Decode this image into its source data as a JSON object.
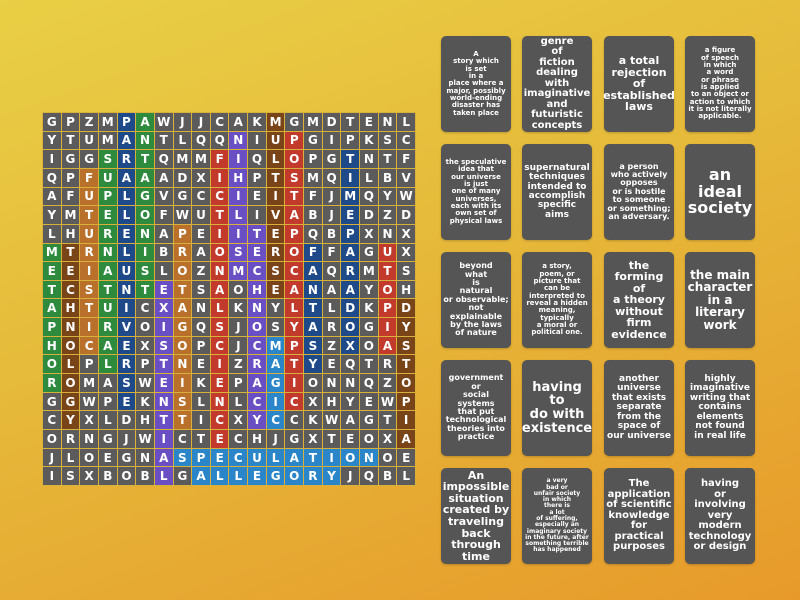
{
  "colors": {
    "cell": "#5b5b5b",
    "green": "#2e8b3e",
    "darkblue": "#1f4a8a",
    "brown": "#7a4419",
    "orange": "#b8702a",
    "red": "#c23a2b",
    "purple": "#6a4fc4",
    "lightblue": "#2a86c8"
  },
  "grid": [
    "GPZMPAWJJCAKMGMDTENL",
    "YTUMANTLQQNIUPGIPKSC",
    "IGGSRTQMMFIQLOPGTNTF",
    "QPFUAAADXIHPTSMQILBV",
    "AFUPLGVGCCIEITFJMQYW",
    "YMTELOFWUTLIVABJEDZD",
    "LHURENAPEIITEPQBPXNX",
    "MTRNLIBRAOSEROFFAGUX",
    "EEIAUSLOZNMCSCAQRMTS",
    "TCSTNTETSAOHEANAAYOH",
    "AHTUICXANLKNYLTLDKPD",
    "PNIRVOIGQSJOSYAROGIY",
    "HOCAEXSOPCJCMPSZXOAS",
    "OLPLRPTNEIZRATYEQTRT",
    "ROMASWEIKEPAGIONNQZO",
    "GGWPEKNSLNLCICXHYEWP",
    "CYXLDHTTICXYCCKWAGTI",
    "ORNGJWICTECHJGXTEOXA",
    "JLOEGNASPECULATIONOE",
    "ISXBOBLGALLEGORYJQBL"
  ],
  "found_words": [
    {
      "word": "METAPHOR",
      "row": 7,
      "col": 0,
      "dir": "down",
      "color": "green"
    },
    {
      "word": "TECHNOLOGY",
      "row": 7,
      "col": 1,
      "dir": "down",
      "color": "brown"
    },
    {
      "word": "FUTURISTIC",
      "row": 3,
      "col": 2,
      "dir": "down",
      "color": "orange"
    },
    {
      "word": "SUPERNATURAL",
      "row": 2,
      "col": 3,
      "dir": "down",
      "color": "green"
    },
    {
      "word": "PARALLELUNIVERSE",
      "row": 0,
      "col": 4,
      "dir": "down",
      "color": "darkblue"
    },
    {
      "word": "ANTAGONIST",
      "row": 0,
      "col": 5,
      "dir": "down",
      "color": "green"
    },
    {
      "word": "EXISTENTIAL",
      "row": 9,
      "col": 6,
      "dir": "down",
      "color": "purple"
    },
    {
      "word": "PROTAGONIST",
      "row": 6,
      "col": 7,
      "dir": "down",
      "color": "orange"
    },
    {
      "word": "FICTIONALSCIENCE",
      "row": 2,
      "col": 9,
      "dir": "down",
      "color": "red"
    },
    {
      "word": "NIHILISM",
      "row": 1,
      "col": 10,
      "dir": "down",
      "color": "purple"
    },
    {
      "word": "TECHNOCRACY",
      "row": 6,
      "col": 11,
      "dir": "down",
      "color": "purple"
    },
    {
      "word": "MULTIVERSE",
      "row": 0,
      "col": 12,
      "dir": "down",
      "color": "brown"
    },
    {
      "word": "MAGIC",
      "row": 12,
      "col": 12,
      "dir": "down",
      "color": "lightblue"
    },
    {
      "word": "POSTAPOCALYPTIC",
      "row": 1,
      "col": 13,
      "dir": "down",
      "color": "red"
    },
    {
      "word": "FANTASY",
      "row": 7,
      "col": 14,
      "dir": "down",
      "color": "darkblue"
    },
    {
      "word": "TIMEPARADOX",
      "row": 2,
      "col": 16,
      "dir": "down",
      "color": "darkblue"
    },
    {
      "word": "UTOPIA",
      "row": 7,
      "col": 18,
      "dir": "down",
      "color": "red"
    },
    {
      "word": "DYSTOPIA",
      "row": 10,
      "col": 19,
      "dir": "down",
      "color": "brown"
    },
    {
      "word": "SPECULATION",
      "row": 18,
      "col": 7,
      "dir": "right",
      "color": "lightblue"
    },
    {
      "word": "ALLEGORY",
      "row": 19,
      "col": 8,
      "dir": "right",
      "color": "lightblue"
    }
  ],
  "clues": [
    "A\nstory which\nis set\nin a\nplace where a\nmajor, possibly\nworld-ending\ndisaster has\ntaken place",
    "genre\nof\nfiction\ndealing with\nimaginative\nand\nfuturistic\nconcepts",
    "a total\nrejection\nof\nestablished\nlaws",
    "a figure\nof speech\nin which\na word\nor phrase\nis applied\nto an object or\naction to which\nit is not literally\napplicable.",
    "the speculative\nidea that\nour universe\nis just\none of many\nuniverses,\neach with its\nown set of\nphysical laws",
    "supernatural\ntechniques\nintended to\naccomplish\nspecific\naims",
    "a person\nwho actively\nopposes\nor is hostile\nto someone\nor something;\nan adversary.",
    "an\nideal\nsociety",
    "beyond\nwhat\nis\nnatural\nor observable;\nnot\nexplainable\nby the laws\nof nature",
    "a story,\npoem, or\npicture that\ncan be\ninterpreted to\nreveal a hidden\nmeaning,\ntypically\na moral or\npolitical one.",
    "the\nforming\nof\na theory\nwithout\nfirm\nevidence",
    "the main\ncharacter\nin a\nliterary\nwork",
    "government\nor\nsocial\nsystems\nthat put\ntechnological\ntheories into\npractice",
    "having\nto\ndo with\nexistence",
    "another\nuniverse\nthat exists\nseparate\nfrom the\nspace of\nour universe",
    "highly\nimaginative\nwriting that\ncontains\nelements\nnot found\nin real life",
    "An\nimpossible\nsituation\ncreated by\ntraveling\nback\nthrough\ntime",
    "a very\nbad or\nunfair society\nin which\nthere is\na lot\nof suffering,\nespecially an\nimaginary society\nin the future, after\nsomething terrible\nhas happened",
    "The\napplication\nof scientific\nknowledge\nfor\npractical\npurposes",
    "having\nor\ninvolving\nvery\nmodern\ntechnology\nor design"
  ]
}
